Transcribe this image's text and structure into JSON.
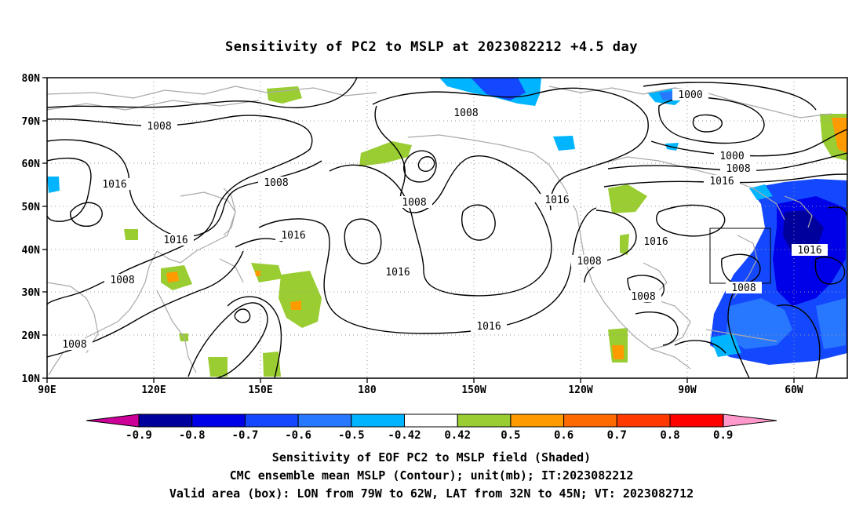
{
  "title": "Sensitivity of PC2 to MSLP at 2023082212 +4.5 day",
  "map": {
    "lat_ticks": [
      "80N",
      "70N",
      "60N",
      "50N",
      "40N",
      "30N",
      "20N",
      "10N"
    ],
    "lon_ticks": [
      "90E",
      "120E",
      "150E",
      "180",
      "150W",
      "120W",
      "90W",
      "60W"
    ],
    "contour_labels": [
      "1008",
      "1008",
      "1016",
      "1016",
      "1008",
      "1016",
      "1008",
      "1016",
      "1008",
      "1000",
      "1000",
      "1008",
      "1016",
      "1016",
      "1016",
      "1008",
      "1008",
      "1008",
      "1016",
      "1008"
    ],
    "valid_box": {
      "lon_from": "79W",
      "lon_to": "62W",
      "lat_from": "32N",
      "lat_to": "45N"
    }
  },
  "colorbar": {
    "labels": [
      "-0.9",
      "-0.8",
      "-0.7",
      "-0.6",
      "-0.5",
      "-0.42",
      "0.42",
      "0.5",
      "0.6",
      "0.7",
      "0.8",
      "0.9"
    ],
    "colors": [
      "#00009c",
      "#0000e8",
      "#1448ff",
      "#2878ff",
      "#00b4ff",
      "#ffffff",
      "#9acd32",
      "#ff9a00",
      "#ff6a00",
      "#ff3a00",
      "#ff0000"
    ],
    "low_end_color": "#cc0099",
    "high_end_color": "#ff99cc"
  },
  "footer": {
    "line1": "Sensitivity of EOF PC2 to MSLP field (Shaded)",
    "line2": "CMC ensemble mean MSLP (Contour); unit(mb); IT:2023082212",
    "line3": "Valid area (box): LON from 79W to 62W, LAT from 32N to 45N; VT: 2023082712"
  }
}
